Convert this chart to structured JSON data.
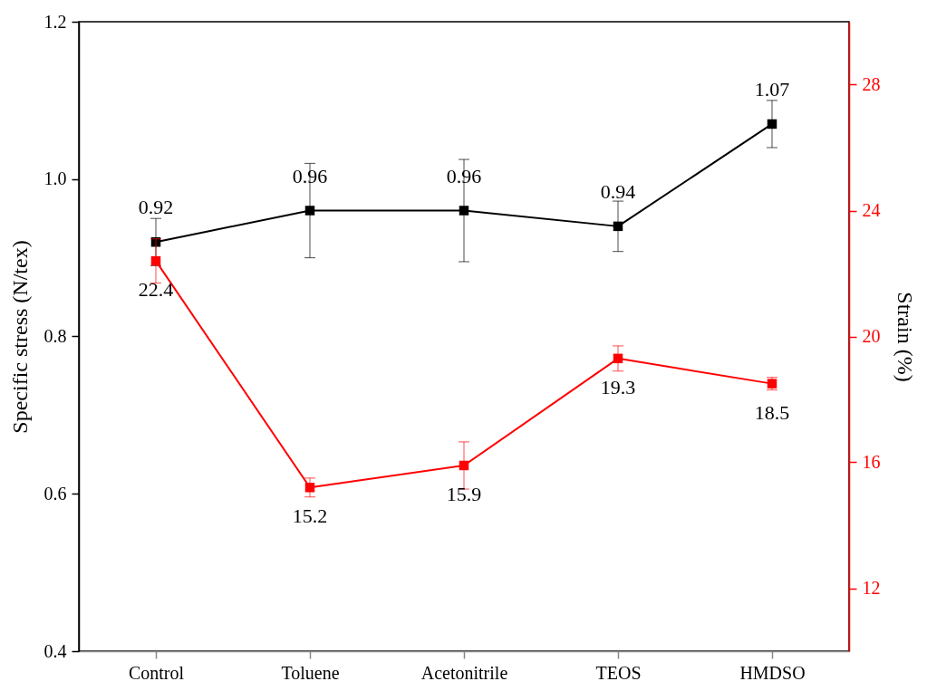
{
  "chart_data": {
    "type": "line",
    "categories": [
      "Control",
      "Toluene",
      "Acetonitrile",
      "TEOS",
      "HMDSO"
    ],
    "ylabel": "Specific stress (N/tex)",
    "y2label": "Strain (%)",
    "ylim": [
      0.4,
      1.2
    ],
    "yticks": [
      0.4,
      0.6,
      0.8,
      {
        "value": 1,
        "label": "1.0"
      },
      1.2
    ],
    "y2lim": [
      10,
      30
    ],
    "y2ticks": [
      12,
      16,
      20,
      24,
      28
    ],
    "marker": "square",
    "grid": false,
    "data_labels": true,
    "series": [
      {
        "color": "#000000",
        "values": [
          0.92,
          0.96,
          0.96,
          0.94,
          1.07
        ],
        "errors": [
          0.03,
          0.06,
          0.065,
          0.032,
          0.03
        ]
      },
      {
        "color": "#ff0000",
        "axis": "y2",
        "values": [
          22.4,
          15.2,
          15.9,
          19.3,
          18.5
        ],
        "errors": [
          0.7,
          0.3,
          0.75,
          0.4,
          0.2
        ]
      }
    ]
  }
}
